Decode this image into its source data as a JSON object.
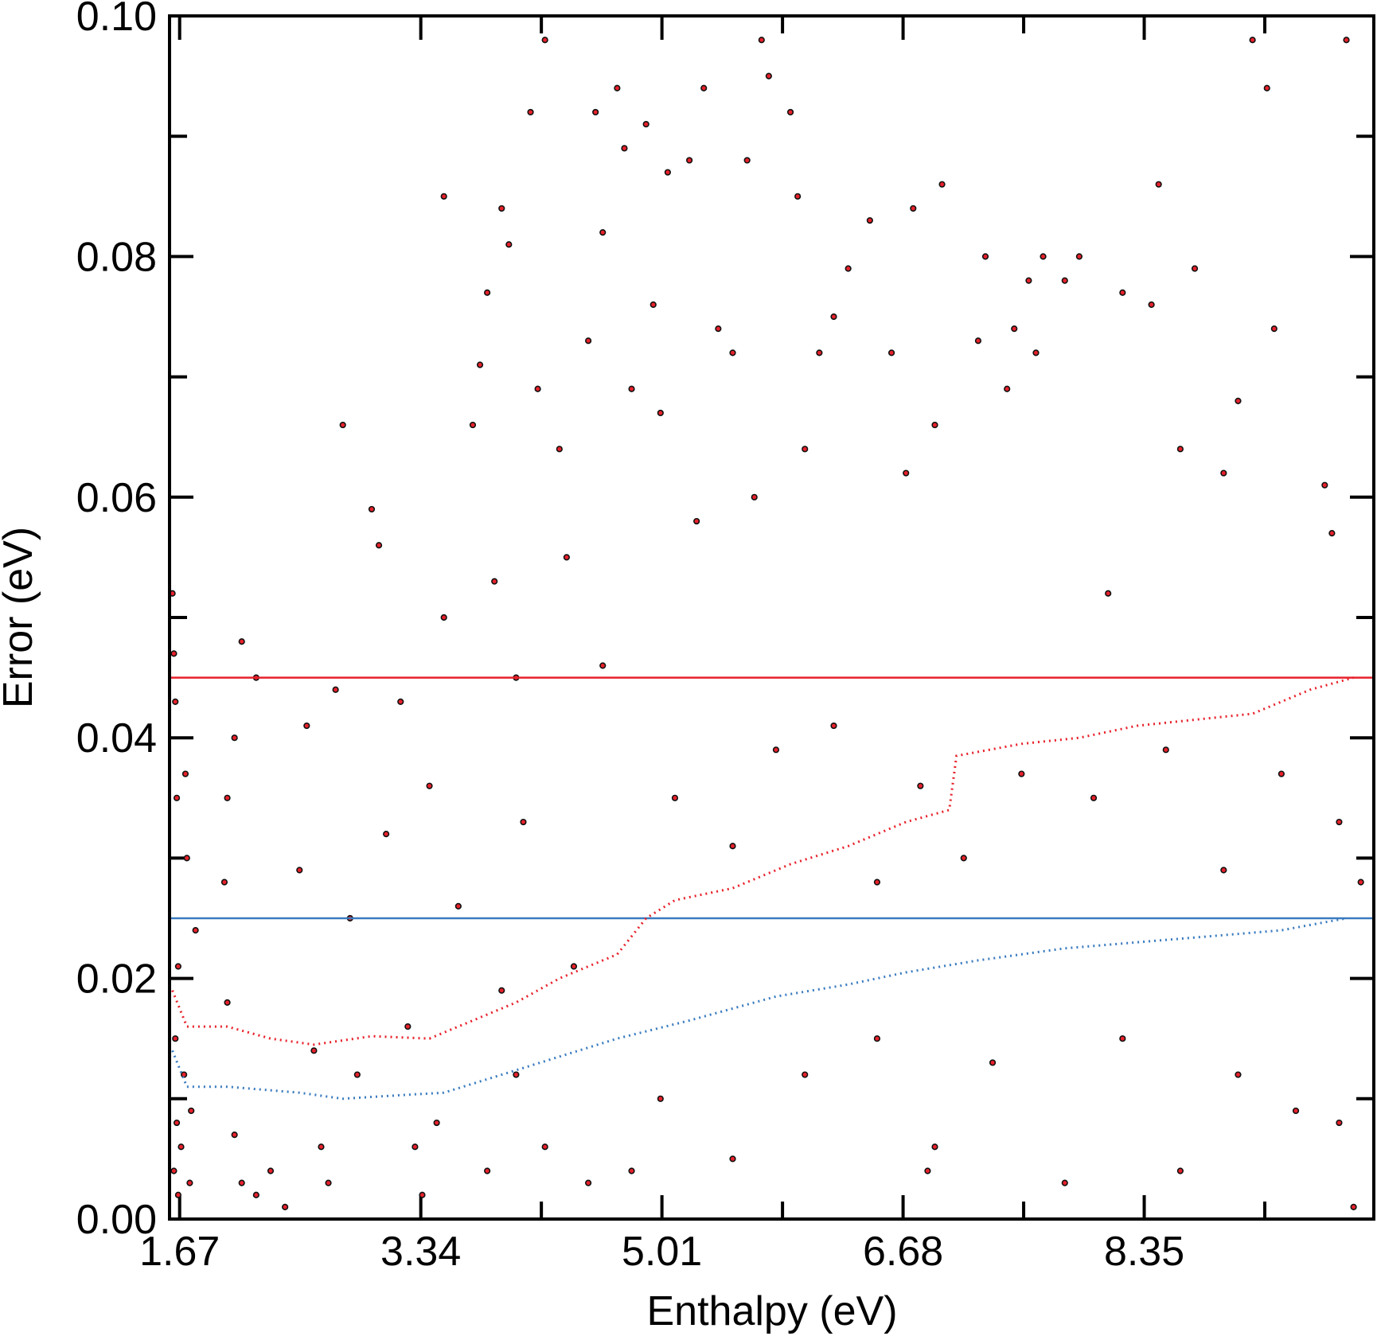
{
  "chart_data": {
    "type": "scatter",
    "xlabel": "Enthalpy (eV)",
    "ylabel": "Error (eV)",
    "xlim": [
      1.6,
      9.94
    ],
    "ylim": [
      0,
      0.1
    ],
    "xticks": [
      1.67,
      3.34,
      5.01,
      6.68,
      8.35
    ],
    "xminorticks": [
      4.175,
      5.845,
      7.515,
      9.185
    ],
    "yticks": [
      {
        "value": 0,
        "label": "0.00"
      },
      {
        "value": 0.02,
        "label": "0.02"
      },
      {
        "value": 0.04,
        "label": "0.04"
      },
      {
        "value": 0.06,
        "label": "0.06"
      },
      {
        "value": 0.08,
        "label": "0.08"
      },
      {
        "value": 0.1,
        "label": "0.10"
      }
    ],
    "yminorticks": [
      0.01,
      0.03,
      0.05,
      0.07,
      0.09
    ],
    "series": [
      {
        "type": "scatter",
        "color": "#e8212b",
        "x": [
          1.62,
          1.63,
          1.64,
          1.65,
          1.66,
          1.64,
          1.65,
          1.63,
          1.66,
          1.68,
          1.7,
          1.71,
          1.72,
          1.74,
          1.75,
          1.78,
          2.1,
          2.2,
          2.05,
          2.0,
          1.98,
          2.0,
          2.05,
          2.1,
          2.2,
          2.3,
          2.4,
          2.5,
          2.55,
          2.6,
          2.65,
          2.7,
          2.8,
          2.75,
          2.85,
          2.9,
          3.0,
          3.05,
          3.1,
          3.2,
          3.25,
          3.3,
          3.35,
          3.4,
          3.5,
          3.5,
          3.45,
          3.6,
          3.7,
          3.75,
          3.8,
          3.85,
          3.9,
          3.95,
          4.0,
          4.05,
          4.1,
          4.15,
          4.0,
          4.2,
          4.3,
          4.35,
          4.4,
          4.5,
          4.55,
          4.6,
          4.6,
          4.7,
          4.75,
          4.8,
          4.9,
          4.95,
          5.0,
          5.05,
          5.2,
          5.25,
          5.3,
          5.4,
          5.5,
          5.6,
          5.65,
          5.7,
          5.75,
          5.9,
          5.95,
          6.0,
          6.1,
          6.2,
          6.3,
          6.45,
          6.6,
          6.7,
          6.75,
          6.9,
          6.95,
          7.2,
          7.25,
          7.4,
          7.45,
          7.55,
          7.6,
          7.65,
          7.8,
          7.9,
          8.1,
          8.2,
          8.4,
          8.45,
          8.6,
          8.7,
          8.9,
          9.0,
          9.1,
          9.2,
          9.25,
          9.6,
          9.65,
          9.75,
          5.1,
          5.5,
          5.8,
          6.2,
          6.5,
          6.8,
          7.1,
          7.5,
          8.0,
          8.5,
          8.9,
          9.3,
          9.7,
          9.85,
          5.0,
          5.5,
          6.0,
          6.5,
          6.85,
          6.9,
          7.3,
          7.8,
          8.2,
          8.6,
          9.0,
          9.4,
          9.7,
          9.8,
          4.2,
          4.5,
          4.8,
          3.8,
          3.9
        ],
        "values": [
          0.052,
          0.047,
          0.043,
          0.035,
          0.021,
          0.015,
          0.008,
          0.004,
          0.002,
          0.006,
          0.012,
          0.037,
          0.03,
          0.003,
          0.009,
          0.024,
          0.048,
          0.045,
          0.04,
          0.035,
          0.028,
          0.018,
          0.007,
          0.003,
          0.002,
          0.004,
          0.001,
          0.029,
          0.041,
          0.014,
          0.006,
          0.003,
          0.066,
          0.044,
          0.025,
          0.012,
          0.059,
          0.056,
          0.032,
          0.043,
          0.016,
          0.006,
          0.002,
          0.036,
          0.085,
          0.05,
          0.008,
          0.026,
          0.066,
          0.071,
          0.077,
          0.053,
          0.084,
          0.081,
          0.045,
          0.033,
          0.092,
          0.069,
          0.012,
          0.098,
          0.064,
          0.055,
          0.021,
          0.073,
          0.092,
          0.082,
          0.046,
          0.094,
          0.089,
          0.069,
          0.091,
          0.076,
          0.067,
          0.087,
          0.088,
          0.058,
          0.094,
          0.074,
          0.072,
          0.088,
          0.06,
          0.098,
          0.095,
          0.092,
          0.085,
          0.064,
          0.072,
          0.075,
          0.079,
          0.083,
          0.072,
          0.062,
          0.084,
          0.066,
          0.086,
          0.073,
          0.08,
          0.069,
          0.074,
          0.078,
          0.072,
          0.08,
          0.078,
          0.08,
          0.052,
          0.077,
          0.076,
          0.086,
          0.064,
          0.079,
          0.062,
          0.068,
          0.098,
          0.094,
          0.074,
          0.061,
          0.057,
          0.098,
          0.035,
          0.031,
          0.039,
          0.041,
          0.028,
          0.036,
          0.03,
          0.037,
          0.035,
          0.039,
          0.029,
          0.037,
          0.033,
          0.028,
          0.01,
          0.005,
          0.012,
          0.015,
          0.004,
          0.006,
          0.013,
          0.003,
          0.015,
          0.004,
          0.012,
          0.009,
          0.008,
          0.001,
          0.006,
          0.003,
          0.004,
          0.004,
          0.019
        ]
      },
      {
        "type": "hline",
        "color": "#e8212b",
        "value": 0.045
      },
      {
        "type": "hline",
        "color": "#3a7bbf",
        "value": 0.025
      },
      {
        "type": "dotted",
        "color": "#e8212b",
        "x": [
          1.62,
          1.72,
          2.0,
          2.3,
          2.6,
          3.0,
          3.4,
          3.7,
          4.0,
          4.3,
          4.5,
          4.7,
          4.9,
          5.1,
          5.5,
          5.9,
          6.3,
          6.7,
          7.0,
          7.05,
          7.5,
          7.9,
          8.3,
          8.7,
          9.1,
          9.5,
          9.8
        ],
        "values": [
          0.019,
          0.016,
          0.016,
          0.015,
          0.0145,
          0.0152,
          0.015,
          0.0165,
          0.018,
          0.02,
          0.021,
          0.022,
          0.025,
          0.0265,
          0.0275,
          0.0295,
          0.031,
          0.033,
          0.034,
          0.0385,
          0.0395,
          0.04,
          0.041,
          0.0415,
          0.042,
          0.044,
          0.045
        ]
      },
      {
        "type": "dotted",
        "color": "#3a7bbf",
        "x": [
          1.62,
          1.72,
          2.0,
          2.5,
          2.8,
          3.2,
          3.5,
          3.9,
          4.3,
          4.7,
          5.2,
          5.8,
          6.3,
          6.7,
          7.2,
          7.8,
          8.3,
          8.8,
          9.3,
          9.75
        ],
        "values": [
          0.014,
          0.011,
          0.011,
          0.0105,
          0.01,
          0.0103,
          0.0105,
          0.012,
          0.0135,
          0.015,
          0.0165,
          0.0185,
          0.0195,
          0.0205,
          0.0215,
          0.0225,
          0.023,
          0.0235,
          0.024,
          0.025
        ]
      }
    ]
  }
}
